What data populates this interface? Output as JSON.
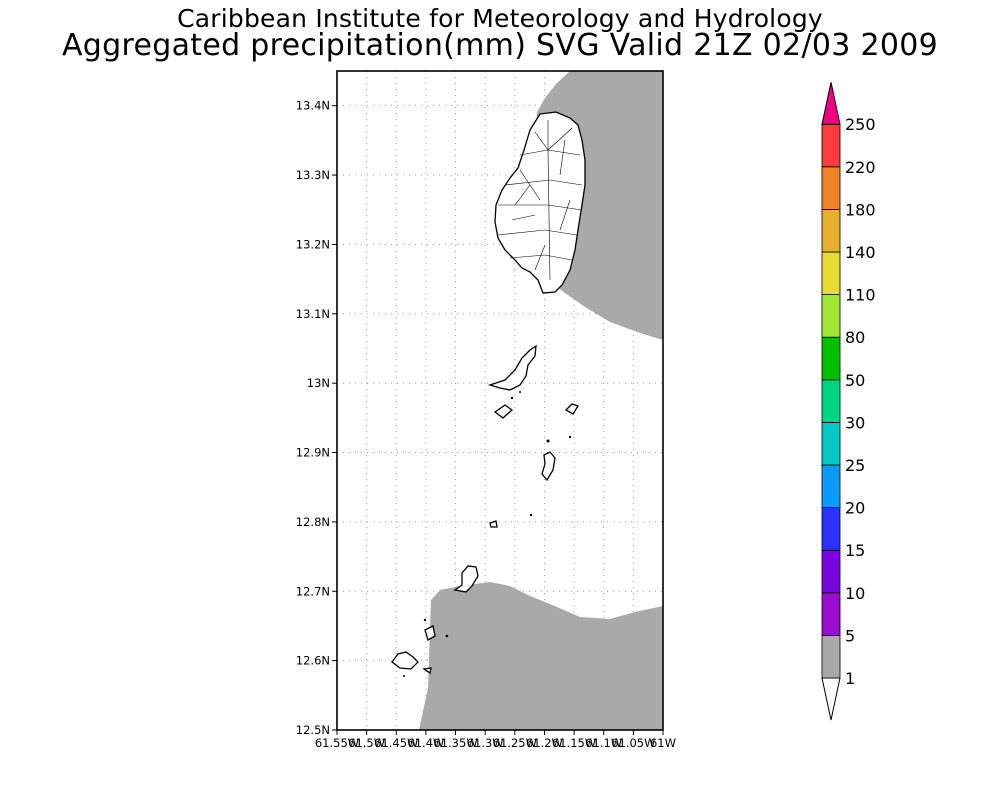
{
  "header": {
    "title": "Caribbean Institute for Meteorology and Hydrology",
    "subtitle": "Aggregated precipitation(mm) SVG Valid 21Z 02/03 2009"
  },
  "map": {
    "region": "St. Vincent and the Grenadines",
    "lat_range": [
      12.5,
      13.45
    ],
    "lon_range": [
      -61.55,
      -61.0
    ],
    "y_ticks": [
      "13.4N",
      "13.3N",
      "13.2N",
      "13.1N",
      "13N",
      "12.9N",
      "12.8N",
      "12.7N",
      "12.6N",
      "12.5N"
    ],
    "x_ticks": [
      "61.55W",
      "61.5W",
      "61.45W",
      "61.4W",
      "61.35W",
      "61.3W",
      "61.25W",
      "61.2W",
      "61.15W",
      "61.1W",
      "61.05W",
      "61W"
    ],
    "gridlines": true,
    "shaded_precip_class": "1-5 mm"
  },
  "legend": {
    "labels": [
      "1",
      "5",
      "10",
      "15",
      "20",
      "25",
      "30",
      "50",
      "80",
      "110",
      "140",
      "180",
      "220",
      "250"
    ],
    "colors": [
      "#a9a9a9",
      "#9b0ed0",
      "#7a05e0",
      "#2b32ff",
      "#0a9bff",
      "#05c8c8",
      "#00d486",
      "#00c000",
      "#a0e632",
      "#e6dc32",
      "#e6af2d",
      "#f08228",
      "#fa3c3c",
      "#f00082"
    ]
  }
}
